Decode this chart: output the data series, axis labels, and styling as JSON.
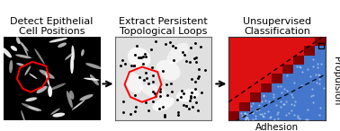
{
  "title1": "Detect Epithelial\nCell Positions",
  "title2": "Extract Persistent\nTopological Loops",
  "title3": "Unsupervised\nClassification",
  "xlabel3": "Adhesion",
  "ylabel3": "Propulsion",
  "panel1_bg": "#000000",
  "panel2_bg": "#e0e0e0",
  "panel3_red": "#dd1111",
  "panel3_blue": "#4477cc",
  "panel3_darkred": "#770000",
  "loop_color": "#ff0000",
  "title_color": "#000000",
  "title_fontsize": 8.0,
  "axis_label_fontsize": 7.5,
  "fig_bg": "#ffffff",
  "n_cells_p1": 35,
  "n_dots_p2": 90,
  "stair_n": 9
}
